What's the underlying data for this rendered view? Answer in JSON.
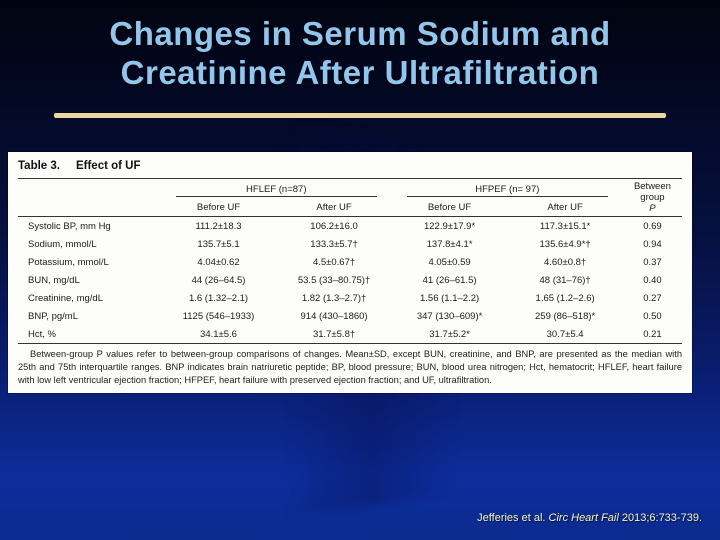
{
  "slide": {
    "title_lines": [
      "Changes in Serum Sodium and",
      "Creatinine After Ultrafiltration"
    ],
    "citation": {
      "prefix": "Jefferies et al. ",
      "journal": "Circ Heart Fail",
      "suffix": " 2013;6:733-739."
    }
  },
  "colors": {
    "title_text": "#92c6ec",
    "title_underline": "#eed6a2",
    "background_top": "#01040f",
    "background_bottom": "#0b2b90",
    "panel_background": "#fdfdfc",
    "citation_text": "#f6f6c6"
  },
  "table": {
    "label": "Table 3.",
    "title": "Effect of UF",
    "groups": [
      {
        "label": "HFLEF (n=87)"
      },
      {
        "label": "HFPEF (n= 97)"
      }
    ],
    "between_group_label": "Between group",
    "p_label": "P",
    "sub_headers": [
      "Before UF",
      "After UF",
      "Before UF",
      "After UF"
    ],
    "rows": [
      {
        "label": "Systolic BP, mm Hg",
        "values": [
          "111.2±18.3",
          "106.2±16.0",
          "122.9±17.9*",
          "117.3±15.1*"
        ],
        "p": "0.69"
      },
      {
        "label": "Sodium, mmol/L",
        "values": [
          "135.7±5.1",
          "133.3±5.7†",
          "137.8±4.1*",
          "135.6±4.9*†"
        ],
        "p": "0.94"
      },
      {
        "label": "Potassium, mmol/L",
        "values": [
          "4.04±0.62",
          "4.5±0.67†",
          "4.05±0.59",
          "4.60±0.8†"
        ],
        "p": "0.37"
      },
      {
        "label": "BUN, mg/dL",
        "values": [
          "44 (26–64.5)",
          "53.5 (33–80.75)†",
          "41 (26–61.5)",
          "48 (31–76)†"
        ],
        "p": "0.40"
      },
      {
        "label": "Creatinine, mg/dL",
        "values": [
          "1.6 (1.32–2.1)",
          "1.82 (1.3–2.7)†",
          "1.56 (1.1–2.2)",
          "1.65 (1.2–2.6)"
        ],
        "p": "0.27"
      },
      {
        "label": "BNP, pg/mL",
        "values": [
          "1125 (546–1933)",
          "914 (430–1860)",
          "347 (130–609)*",
          "259 (86–518)*"
        ],
        "p": "0.50"
      },
      {
        "label": "Hct, %",
        "values": [
          "34.1±5.6",
          "31.7±5.8†",
          "31.7±5.2*",
          "30.7±5.4"
        ],
        "p": "0.21"
      }
    ],
    "footnote": "Between-group P values refer to between-group comparisons of changes. Mean±SD, except BUN, creatinine, and BNP, are presented as the median with 25th and 75th interquartile ranges. BNP indicates brain natriuretic peptide; BP, blood pressure; BUN, blood urea nitrogen; Hct, hematocrit; HFLEF, heart failure with low left ventricular ejection fraction; HFPEF, heart failure with preserved ejection fraction; and UF, ultrafiltration."
  }
}
